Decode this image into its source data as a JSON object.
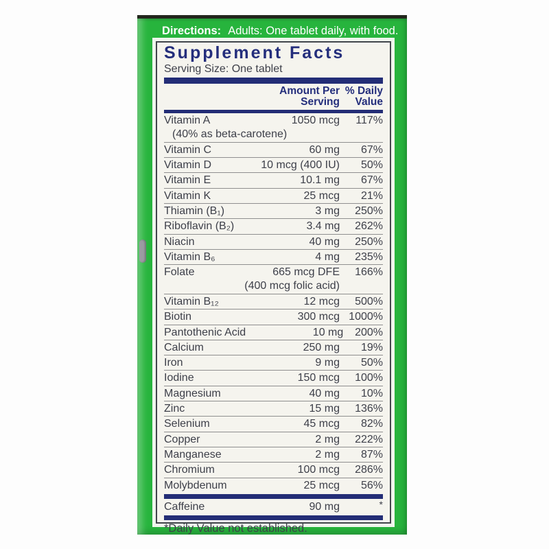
{
  "directions": {
    "label": "Directions:",
    "text": "Adults:  One tablet daily, with food."
  },
  "panel": {
    "title": "Supplement Facts",
    "serving_size": "Serving Size: One tablet",
    "header": {
      "amount_line1": "Amount Per",
      "amount_line2": "Serving",
      "dv_line1": "% Daily",
      "dv_line2": "Value"
    },
    "rows": [
      {
        "name": "Vitamin A",
        "amount": "1050 mcg",
        "dv": "117%",
        "note": "(40% as beta-carotene)",
        "note_align": "left"
      },
      {
        "name": "Vitamin C",
        "amount": "60 mg",
        "dv": "67%"
      },
      {
        "name": "Vitamin D",
        "amount": "10 mcg (400 IU)",
        "dv": "50%"
      },
      {
        "name": "Vitamin E",
        "amount": "10.1 mg",
        "dv": "67%"
      },
      {
        "name": "Vitamin K",
        "amount": "25 mcg",
        "dv": "21%"
      },
      {
        "name": "Thiamin (B₁)",
        "amount": "3 mg",
        "dv": "250%"
      },
      {
        "name": "Riboflavin (B₂)",
        "amount": "3.4 mg",
        "dv": "262%"
      },
      {
        "name": "Niacin",
        "amount": "40 mg",
        "dv": "250%"
      },
      {
        "name": "Vitamin B₆",
        "amount": "4 mg",
        "dv": "235%"
      },
      {
        "name": "Folate",
        "amount": "665 mcg DFE",
        "dv": "166%",
        "note": "(400 mcg folic acid)",
        "note_align": "amtcol"
      },
      {
        "name": "Vitamin B₁₂",
        "amount": "12 mcg",
        "dv": "500%"
      },
      {
        "name": "Biotin",
        "amount": "300 mcg",
        "dv": "1000%"
      },
      {
        "name": "Pantothenic Acid",
        "amount": "10 mg",
        "dv": "200%"
      },
      {
        "name": "Calcium",
        "amount": "250 mg",
        "dv": "19%"
      },
      {
        "name": "Iron",
        "amount": "9 mg",
        "dv": "50%"
      },
      {
        "name": "Iodine",
        "amount": "150 mcg",
        "dv": "100%"
      },
      {
        "name": "Magnesium",
        "amount": "40 mg",
        "dv": "10%"
      },
      {
        "name": "Zinc",
        "amount": "15 mg",
        "dv": "136%"
      },
      {
        "name": "Selenium",
        "amount": "45 mcg",
        "dv": "82%"
      },
      {
        "name": "Copper",
        "amount": "2 mg",
        "dv": "222%"
      },
      {
        "name": "Manganese",
        "amount": "2 mg",
        "dv": "87%"
      },
      {
        "name": "Chromium",
        "amount": "100 mcg",
        "dv": "286%"
      },
      {
        "name": "Molybdenum",
        "amount": "25 mcg",
        "dv": "56%"
      }
    ],
    "caffeine_row": {
      "name": "Caffeine",
      "amount": "90 mg",
      "dv": "*"
    },
    "footnote": "*Daily Value not established."
  },
  "colors": {
    "box_green": "#27b43d",
    "panel_bg": "#f5f4ee",
    "navy": "#242e7c",
    "row_text": "#3d3f49",
    "separator": "#8f8f8f",
    "directions_text": "#ffffff"
  }
}
